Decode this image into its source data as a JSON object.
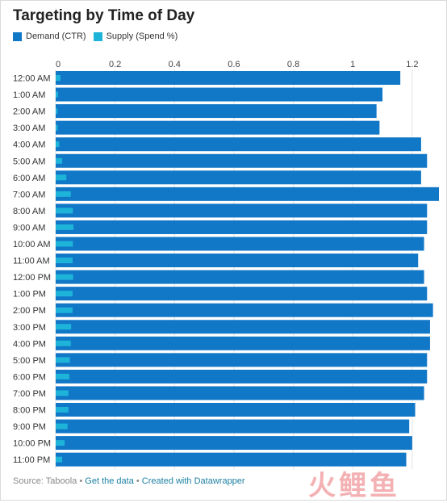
{
  "title": "Targeting by Time of Day",
  "legend": {
    "demand_label": "Demand (CTR)",
    "supply_label": "Supply (Spend %)"
  },
  "colors": {
    "demand": "#1177c7",
    "supply": "#1eb3d9",
    "grid": "#e3e3e3"
  },
  "footer": {
    "source": "Source: Taboola",
    "sep": " • ",
    "get_data": "Get the data",
    "created_with": "Created with Datawrapper"
  },
  "watermark": "火鲤鱼",
  "chart_data": {
    "type": "bar",
    "orientation": "horizontal",
    "title": "Targeting by Time of Day",
    "xlim": [
      0,
      1.29
    ],
    "ticks": [
      0,
      0.2,
      0.4,
      0.6,
      0.8,
      1,
      1.2
    ],
    "tick_labels": [
      "0",
      "0.2",
      "0.4",
      "0.6",
      "0.8",
      "1",
      "1.2"
    ],
    "categories": [
      "12:00 AM",
      "1:00 AM",
      "2:00 AM",
      "3:00 AM",
      "4:00 AM",
      "5:00 AM",
      "6:00 AM",
      "7:00 AM",
      "8:00 AM",
      "9:00 AM",
      "10:00 AM",
      "11:00 AM",
      "12:00 PM",
      "1:00 PM",
      "2:00 PM",
      "3:00 PM",
      "4:00 PM",
      "5:00 PM",
      "6:00 PM",
      "7:00 PM",
      "8:00 PM",
      "9:00 PM",
      "10:00 PM",
      "11:00 PM"
    ],
    "series": [
      {
        "name": "Demand (CTR)",
        "values": [
          1.16,
          1.1,
          1.08,
          1.09,
          1.23,
          1.25,
          1.23,
          1.29,
          1.25,
          1.25,
          1.24,
          1.22,
          1.24,
          1.25,
          1.27,
          1.26,
          1.26,
          1.25,
          1.25,
          1.24,
          1.21,
          1.19,
          1.2,
          1.18
        ]
      },
      {
        "name": "Supply (Spend %)",
        "values": [
          0.016,
          0.008,
          0.006,
          0.007,
          0.012,
          0.022,
          0.036,
          0.051,
          0.058,
          0.06,
          0.058,
          0.057,
          0.059,
          0.057,
          0.057,
          0.052,
          0.051,
          0.048,
          0.046,
          0.043,
          0.043,
          0.04,
          0.03,
          0.022
        ]
      }
    ],
    "grid": true,
    "legend_position": "top-left"
  }
}
